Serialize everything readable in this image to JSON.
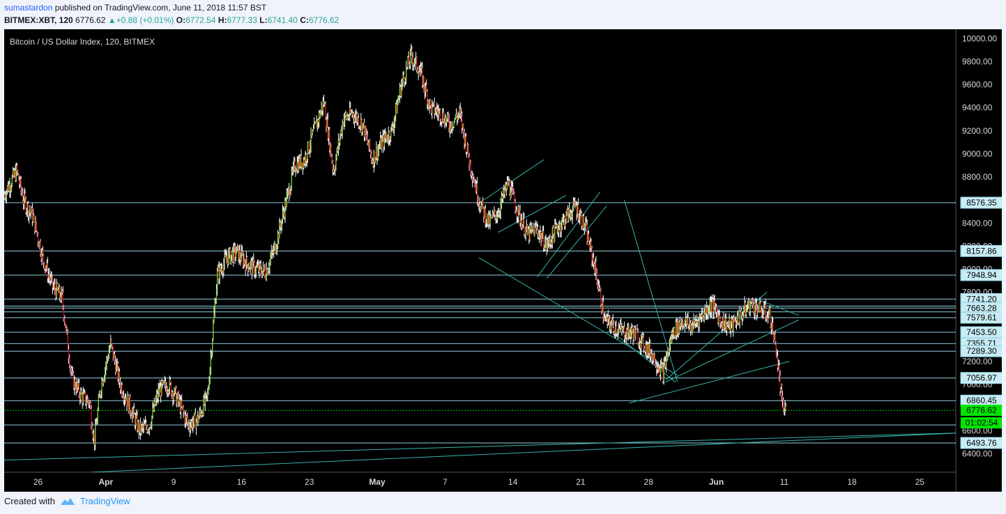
{
  "header": {
    "author": "sumastardon",
    "published": " published on TradingView.com, June 11, 2018 11:57 BST",
    "symbol": "BITMEX:XBT, 120",
    "last": "6776.62",
    "change": "+0.88 (+0.01%)",
    "o_label": "O:",
    "o": "6772.54",
    "h_label": "H:",
    "h": "6777.33",
    "l_label": "L:",
    "l": "6741.40",
    "c_label": "C:",
    "c": "6776.62"
  },
  "footer": {
    "created_with": "Created with",
    "brand": "TradingView"
  },
  "chart_data": {
    "type": "candlestick",
    "title": "Bitcoin / US Dollar Index, 120, BITMEX",
    "ylim": [
      6240,
      10080
    ],
    "y_ticks": [
      6400,
      6600,
      6800,
      7000,
      7200,
      7400,
      7600,
      7800,
      8000,
      8200,
      8400,
      8600,
      8800,
      9000,
      9200,
      9400,
      9600,
      9800,
      10000
    ],
    "y_tick_labels": [
      "6400.00",
      "6600.00",
      "6800.00",
      "7000.00",
      "7200.00",
      "7400.00",
      "7600.00",
      "7800.00",
      "8000.00",
      "8200.00",
      "8400.00",
      "8600.00",
      "8800.00",
      "9000.00",
      "9200.00",
      "9400.00",
      "9600.00",
      "9800.00",
      "10000.00"
    ],
    "x_range_days": [
      -5.5,
      57
    ],
    "x_ticks": [
      {
        "day": 0,
        "label": "26"
      },
      {
        "day": 7,
        "label": "Apr"
      },
      {
        "day": 14,
        "label": "9"
      },
      {
        "day": 21,
        "label": "16"
      },
      {
        "day": 28,
        "label": "23"
      },
      {
        "day": 35,
        "label": "May"
      },
      {
        "day": 42,
        "label": "7"
      },
      {
        "day": 49,
        "label": "14"
      },
      {
        "day": 56,
        "label": "21"
      },
      {
        "day": 63,
        "label": "28"
      },
      {
        "day": 70,
        "label": "Jun"
      },
      {
        "day": 77,
        "label": "11"
      },
      {
        "day": 84,
        "label": "18"
      },
      {
        "day": 91,
        "label": "25"
      }
    ],
    "horizontal_levels": [
      8576.35,
      8157.86,
      7948.94,
      7741.2,
      7663.28,
      7579.61,
      7453.5,
      7355.71,
      7289.3,
      7056.97,
      6860.45,
      6493.76
    ],
    "horizontal_level_labels": [
      "8576.35",
      "8157.86",
      "7948.94",
      "7741.20",
      "7663.28",
      "7579.61",
      "7453.50",
      "7355.71",
      "7289.30",
      "7056.97",
      "6860.45",
      "6493.76"
    ],
    "extra_horizontal_levels": [
      7680,
      7630,
      6650
    ],
    "last_price": 6776.62,
    "last_price_label": "6776.62",
    "countdown_label": "01:02:54",
    "price_path": [
      [
        -3.5,
        8650
      ],
      [
        -2.2,
        8850
      ],
      [
        -1.5,
        8600
      ],
      [
        -0.5,
        8450
      ],
      [
        0.5,
        8100
      ],
      [
        1.5,
        7850
      ],
      [
        2.5,
        7750
      ],
      [
        3.5,
        7050
      ],
      [
        4.5,
        6900
      ],
      [
        5.3,
        6850
      ],
      [
        5.8,
        6500
      ],
      [
        6.5,
        7000
      ],
      [
        7.5,
        7350
      ],
      [
        8.5,
        7000
      ],
      [
        9.5,
        6800
      ],
      [
        10.5,
        6600
      ],
      [
        11.5,
        6650
      ],
      [
        12.5,
        6950
      ],
      [
        13.5,
        7000
      ],
      [
        14.5,
        6850
      ],
      [
        15.5,
        6650
      ],
      [
        16.5,
        6700
      ],
      [
        17.5,
        6900
      ],
      [
        18.5,
        7950
      ],
      [
        19.5,
        8100
      ],
      [
        20.5,
        8150
      ],
      [
        21.5,
        8050
      ],
      [
        22.5,
        8000
      ],
      [
        23.5,
        7980
      ],
      [
        24.5,
        8200
      ],
      [
        25.5,
        8550
      ],
      [
        26.5,
        8900
      ],
      [
        27.5,
        8950
      ],
      [
        28.5,
        9200
      ],
      [
        29.5,
        9450
      ],
      [
        30.5,
        8850
      ],
      [
        31.5,
        9300
      ],
      [
        32.5,
        9350
      ],
      [
        33.5,
        9250
      ],
      [
        34.5,
        8950
      ],
      [
        35.5,
        9100
      ],
      [
        36.5,
        9200
      ],
      [
        37.5,
        9600
      ],
      [
        38.5,
        9850
      ],
      [
        39.5,
        9700
      ],
      [
        40.5,
        9400
      ],
      [
        41.5,
        9350
      ],
      [
        42.5,
        9250
      ],
      [
        43.5,
        9350
      ],
      [
        44.5,
        8950
      ],
      [
        45.5,
        8600
      ],
      [
        46.5,
        8400
      ],
      [
        47.5,
        8500
      ],
      [
        48.5,
        8750
      ],
      [
        49.5,
        8500
      ],
      [
        50.5,
        8300
      ],
      [
        51.5,
        8350
      ],
      [
        52.5,
        8200
      ],
      [
        53.5,
        8350
      ],
      [
        54.5,
        8450
      ],
      [
        55.5,
        8550
      ],
      [
        56.5,
        8350
      ],
      [
        57.5,
        8000
      ],
      [
        58.5,
        7550
      ],
      [
        59.5,
        7500
      ],
      [
        60.5,
        7450
      ],
      [
        61.5,
        7450
      ],
      [
        62.5,
        7350
      ],
      [
        63.5,
        7250
      ],
      [
        64.5,
        7100
      ],
      [
        65.5,
        7450
      ],
      [
        66.5,
        7550
      ],
      [
        67.5,
        7500
      ],
      [
        68.5,
        7600
      ],
      [
        69.5,
        7700
      ],
      [
        70.5,
        7550
      ],
      [
        71.5,
        7500
      ],
      [
        72.5,
        7600
      ],
      [
        73.5,
        7700
      ],
      [
        74.5,
        7650
      ],
      [
        75.5,
        7600
      ],
      [
        76.2,
        7300
      ],
      [
        76.8,
        6800
      ],
      [
        77.2,
        6776
      ]
    ],
    "trend_lines": [
      [
        -5.5,
        6340,
        95,
        6580
      ],
      [
        5.5,
        6240,
        95,
        6580
      ],
      [
        61,
        6840,
        77.5,
        7200
      ],
      [
        60.5,
        8600,
        66,
        7020
      ],
      [
        45.5,
        8100,
        66,
        7080
      ],
      [
        45.3,
        8560,
        52.2,
        8950
      ],
      [
        47.5,
        8320,
        54.5,
        8640
      ],
      [
        51.5,
        7930,
        58,
        8670
      ],
      [
        52.5,
        7920,
        58.7,
        8550
      ],
      [
        59.5,
        7440,
        65.8,
        7020
      ],
      [
        64.8,
        7040,
        75.2,
        7800
      ],
      [
        64.7,
        7020,
        78.5,
        7560
      ],
      [
        74.2,
        7740,
        78.5,
        7600
      ]
    ]
  },
  "colors": {
    "background": "#000000",
    "up": "#7ed321",
    "down": "#d0021b",
    "wick": "#ffffff",
    "level_line": "#8fd0e0",
    "trend_line": "#36b4a8",
    "last_price": "#00e600",
    "axis_text": "#d9d9d9"
  }
}
